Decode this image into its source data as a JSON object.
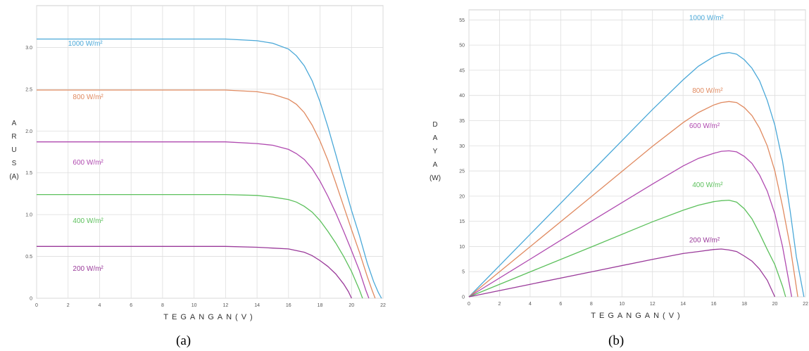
{
  "captions": [
    "(a)",
    "(b)"
  ],
  "chart_data": [
    {
      "type": "line",
      "xlabel": "TEGANGAN(V)",
      "ylabel": [
        "A",
        "R",
        "U",
        "S",
        "(A)"
      ],
      "xlim": [
        0,
        22
      ],
      "ylim": [
        0,
        3.5
      ],
      "xticks": [
        0,
        2,
        4,
        6,
        8,
        10,
        12,
        14,
        16,
        18,
        20,
        22
      ],
      "yticks": [
        0,
        0.5,
        1.0,
        1.5,
        2.0,
        2.5,
        3.0
      ],
      "ytick_labels": [
        "0",
        "0.5",
        "1.0",
        "1.5",
        "2.0",
        "2.5",
        "3.0"
      ],
      "grid": true,
      "series": [
        {
          "name": "1000 W/m²",
          "color": "#4aa8d8",
          "label_at": [
            2,
            3.02
          ],
          "x": [
            0,
            12,
            14,
            15,
            16,
            16.5,
            17,
            17.5,
            18,
            18.5,
            19,
            19.5,
            20,
            20.5,
            21,
            21.4,
            21.7,
            21.9
          ],
          "y": [
            3.1,
            3.1,
            3.08,
            3.05,
            2.98,
            2.9,
            2.78,
            2.6,
            2.35,
            2.05,
            1.72,
            1.38,
            1.05,
            0.75,
            0.42,
            0.2,
            0.07,
            0
          ]
        },
        {
          "name": "800 W/m²",
          "color": "#e08a60",
          "label_at": [
            2.3,
            2.38
          ],
          "x": [
            0,
            12,
            14,
            15,
            16,
            16.5,
            17,
            17.5,
            18,
            18.5,
            19,
            19.5,
            20,
            20.5,
            21,
            21.3,
            21.5
          ],
          "y": [
            2.49,
            2.49,
            2.47,
            2.44,
            2.38,
            2.32,
            2.22,
            2.07,
            1.88,
            1.65,
            1.38,
            1.1,
            0.82,
            0.55,
            0.26,
            0.1,
            0
          ]
        },
        {
          "name": "600 W/m²",
          "color": "#b04ab0",
          "label_at": [
            2.3,
            1.6
          ],
          "x": [
            0,
            12,
            14,
            15,
            16,
            16.5,
            17,
            17.5,
            18,
            18.5,
            19,
            19.5,
            20,
            20.5,
            20.9,
            21.1
          ],
          "y": [
            1.87,
            1.87,
            1.85,
            1.83,
            1.78,
            1.73,
            1.66,
            1.55,
            1.4,
            1.22,
            1.02,
            0.8,
            0.57,
            0.33,
            0.1,
            0
          ]
        },
        {
          "name": "400 W/m²",
          "color": "#5cc05c",
          "label_at": [
            2.3,
            0.9
          ],
          "x": [
            0,
            12,
            14,
            15,
            16,
            16.5,
            17,
            17.5,
            18,
            18.5,
            19,
            19.5,
            20,
            20.5,
            20.7
          ],
          "y": [
            1.24,
            1.24,
            1.23,
            1.21,
            1.18,
            1.15,
            1.1,
            1.03,
            0.93,
            0.8,
            0.66,
            0.5,
            0.32,
            0.1,
            0
          ]
        },
        {
          "name": "200 W/m²",
          "color": "#9a3a9a",
          "label_at": [
            2.3,
            0.33
          ],
          "x": [
            0,
            12,
            14,
            15,
            16,
            16.5,
            17,
            17.5,
            18,
            18.5,
            19,
            19.5,
            19.8,
            20.0
          ],
          "y": [
            0.62,
            0.62,
            0.61,
            0.6,
            0.59,
            0.57,
            0.55,
            0.51,
            0.45,
            0.38,
            0.29,
            0.17,
            0.08,
            0
          ]
        }
      ]
    },
    {
      "type": "line",
      "xlabel": "TEGANGAN(V)",
      "ylabel": [
        "D",
        "A",
        "Y",
        "A",
        "(W)"
      ],
      "xlim": [
        0,
        22
      ],
      "ylim": [
        0,
        57
      ],
      "xticks": [
        0,
        2,
        4,
        6,
        8,
        10,
        12,
        14,
        16,
        18,
        20,
        22
      ],
      "yticks": [
        0,
        5,
        10,
        15,
        20,
        25,
        30,
        35,
        40,
        45,
        50,
        55
      ],
      "grid": true,
      "series": [
        {
          "name": "1000 W/m²",
          "color": "#4aa8d8",
          "label_at": [
            14.4,
            55
          ],
          "x": [
            0,
            4,
            8,
            12,
            14,
            15,
            16,
            16.5,
            17,
            17.5,
            18,
            18.5,
            19,
            19.5,
            20,
            20.5,
            21,
            21.4,
            21.9
          ],
          "y": [
            0,
            12.4,
            24.8,
            37.2,
            43.1,
            45.8,
            47.7,
            48.3,
            48.5,
            48.2,
            47.1,
            45.4,
            42.9,
            39,
            34.1,
            27,
            17,
            8,
            0
          ]
        },
        {
          "name": "800 W/m²",
          "color": "#e08a60",
          "label_at": [
            14.6,
            40.5
          ],
          "x": [
            0,
            4,
            8,
            12,
            14,
            15,
            16,
            16.5,
            17,
            17.5,
            18,
            18.5,
            19,
            19.5,
            20,
            20.5,
            21,
            21.5
          ],
          "y": [
            0,
            9.96,
            19.9,
            29.9,
            34.6,
            36.6,
            38.1,
            38.6,
            38.8,
            38.6,
            37.6,
            36,
            33.5,
            30,
            25,
            18,
            10,
            0
          ]
        },
        {
          "name": "600 W/m²",
          "color": "#b04ab0",
          "label_at": [
            14.4,
            33.5
          ],
          "x": [
            0,
            4,
            8,
            12,
            14,
            15,
            16,
            16.5,
            17,
            17.5,
            18,
            18.5,
            19,
            19.5,
            20,
            20.5,
            21.1
          ],
          "y": [
            0,
            7.48,
            15,
            22.4,
            26,
            27.5,
            28.5,
            28.9,
            29,
            28.8,
            27.9,
            26.5,
            24.2,
            21,
            16.5,
            10,
            0
          ]
        },
        {
          "name": "400 W/m²",
          "color": "#5cc05c",
          "label_at": [
            14.6,
            21.8
          ],
          "x": [
            0,
            4,
            8,
            12,
            14,
            15,
            16,
            16.5,
            17,
            17.5,
            18,
            18.5,
            19,
            19.5,
            20,
            20.5,
            20.7
          ],
          "y": [
            0,
            4.96,
            9.9,
            14.9,
            17.2,
            18.2,
            18.9,
            19.1,
            19.2,
            18.8,
            17.5,
            15.5,
            12.6,
            9.4,
            6.4,
            2.1,
            0
          ]
        },
        {
          "name": "200 W/m²",
          "color": "#9a3a9a",
          "label_at": [
            14.4,
            10.8
          ],
          "x": [
            0,
            4,
            8,
            12,
            14,
            15,
            16,
            16.5,
            17,
            17.5,
            18,
            18.5,
            19,
            19.5,
            20
          ],
          "y": [
            0,
            2.48,
            4.96,
            7.44,
            8.6,
            9,
            9.4,
            9.5,
            9.3,
            9,
            8.1,
            7.1,
            5.5,
            3.3,
            0
          ]
        }
      ]
    }
  ]
}
